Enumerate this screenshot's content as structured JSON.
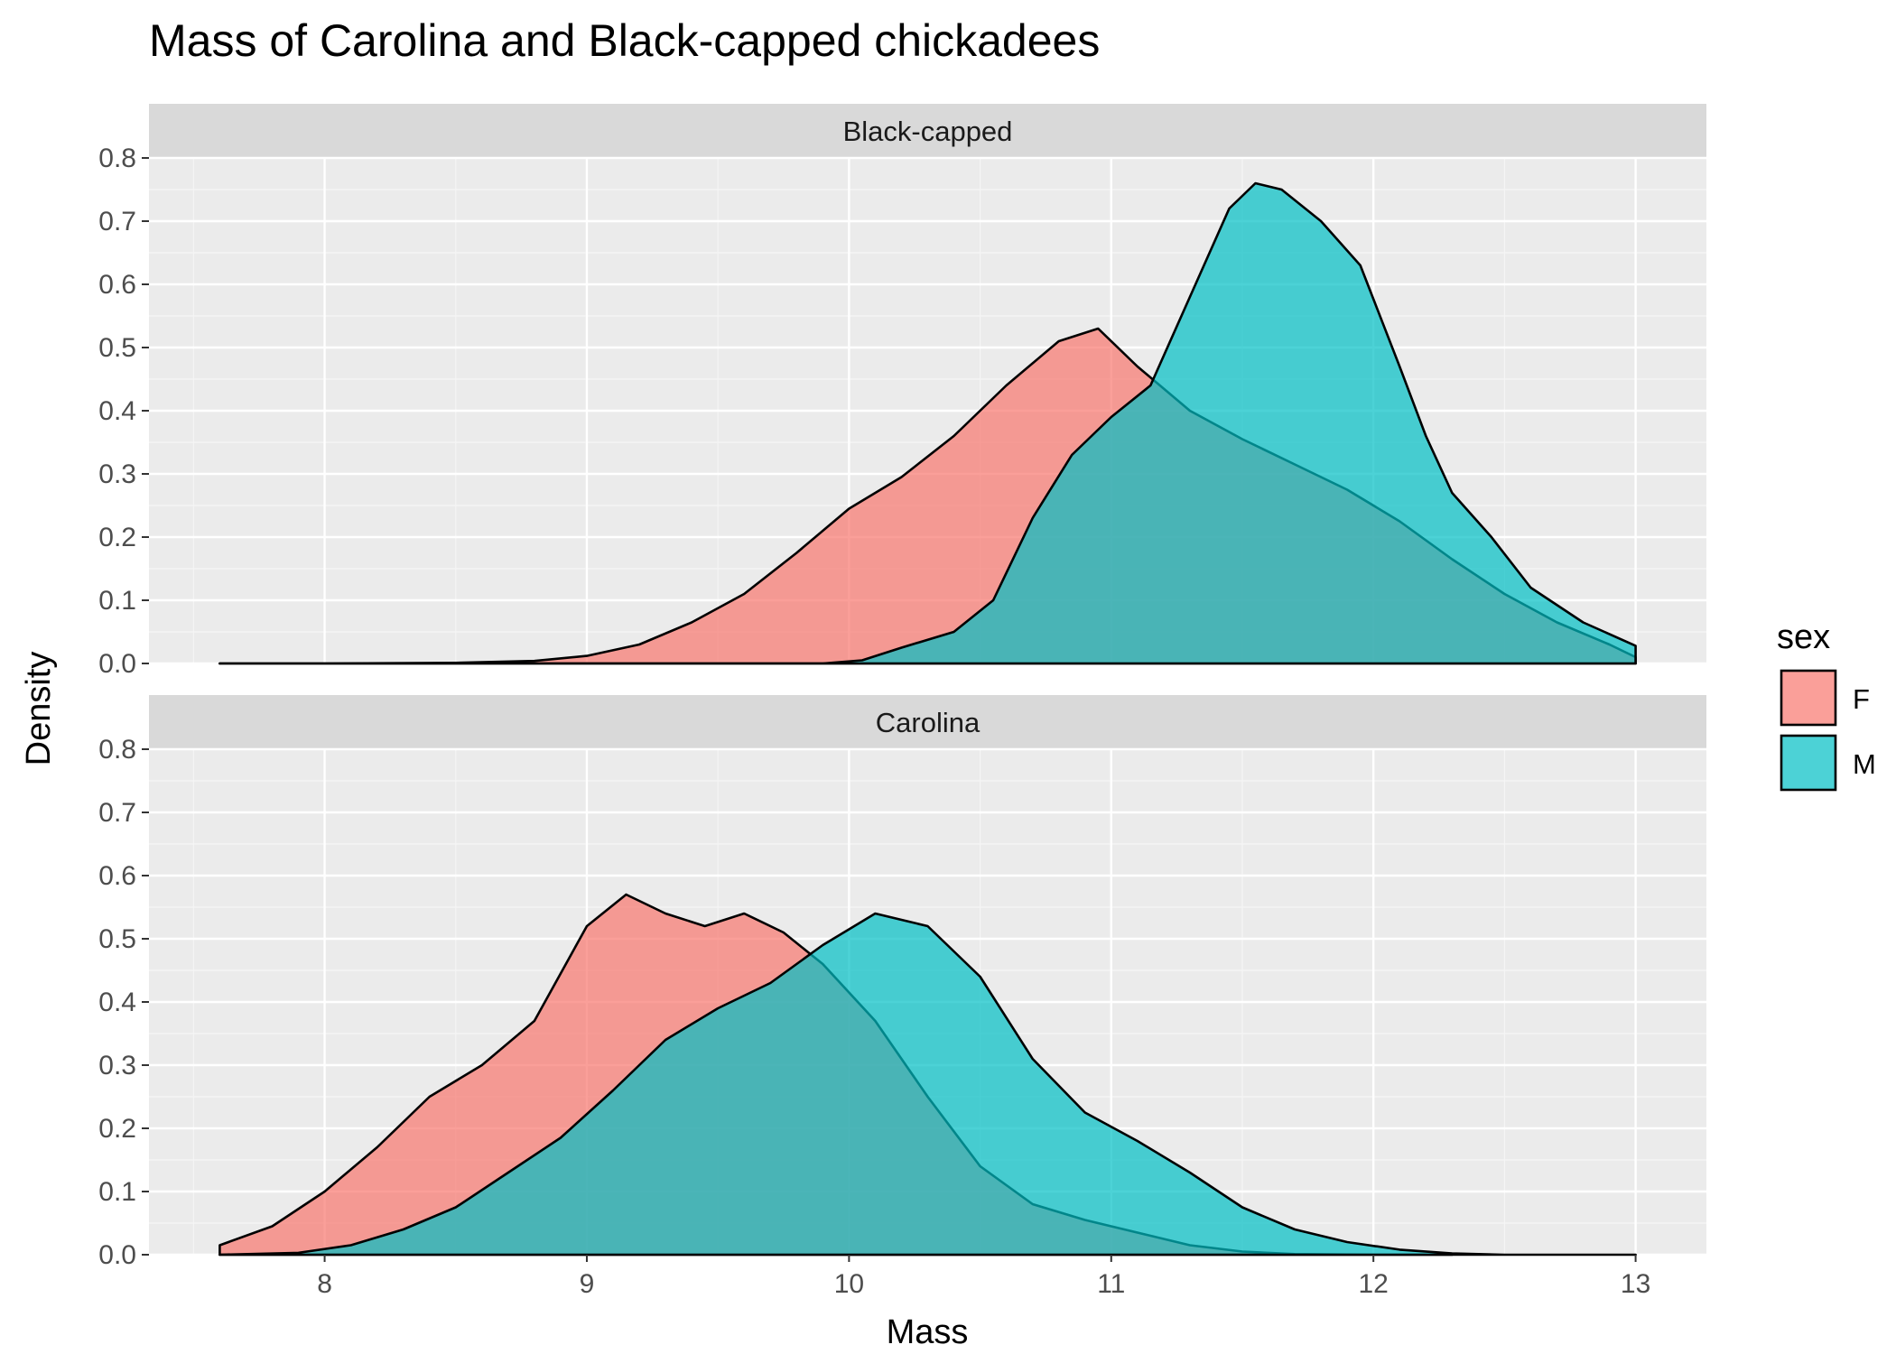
{
  "chart_data": {
    "type": "area",
    "title": "Mass of Carolina and Black-capped chickadees",
    "xlabel": "Mass",
    "ylabel": "Density",
    "xlim": [
      7.33,
      13.27
    ],
    "ylim": [
      0,
      0.8
    ],
    "x_ticks": [
      8,
      9,
      10,
      11,
      12,
      13
    ],
    "y_ticks": [
      0.0,
      0.1,
      0.2,
      0.3,
      0.4,
      0.5,
      0.6,
      0.7,
      0.8
    ],
    "x_tick_labels": [
      "8",
      "9",
      "10",
      "11",
      "12",
      "13"
    ],
    "y_tick_labels": [
      "0.0",
      "0.1",
      "0.2",
      "0.3",
      "0.4",
      "0.5",
      "0.6",
      "0.7",
      "0.8"
    ],
    "grid": true,
    "legend": {
      "title": "sex",
      "position": "right",
      "entries": [
        {
          "label": "F",
          "color": "#F8766D"
        },
        {
          "label": "M",
          "color": "#00BFC4"
        }
      ]
    },
    "facets": [
      {
        "label": "Black-capped",
        "series": [
          {
            "name": "F",
            "color": "#F8766D",
            "x": [
              7.6,
              8.0,
              8.5,
              8.8,
              9.0,
              9.2,
              9.4,
              9.6,
              9.8,
              10.0,
              10.2,
              10.4,
              10.6,
              10.8,
              10.95,
              11.1,
              11.3,
              11.5,
              11.7,
              11.9,
              12.1,
              12.3,
              12.5,
              12.7,
              12.9,
              13.0
            ],
            "y": [
              0.0,
              0.0,
              0.001,
              0.004,
              0.012,
              0.03,
              0.065,
              0.11,
              0.175,
              0.245,
              0.295,
              0.36,
              0.44,
              0.51,
              0.53,
              0.47,
              0.4,
              0.355,
              0.315,
              0.275,
              0.225,
              0.165,
              0.11,
              0.065,
              0.03,
              0.01
            ]
          },
          {
            "name": "M",
            "color": "#00BFC4",
            "x": [
              7.6,
              9.5,
              9.9,
              10.05,
              10.2,
              10.4,
              10.55,
              10.7,
              10.85,
              11.0,
              11.15,
              11.3,
              11.45,
              11.55,
              11.65,
              11.8,
              11.95,
              12.1,
              12.2,
              12.3,
              12.45,
              12.6,
              12.8,
              13.0
            ],
            "y": [
              0.0,
              0.0,
              0.0,
              0.005,
              0.025,
              0.05,
              0.1,
              0.23,
              0.33,
              0.39,
              0.44,
              0.58,
              0.72,
              0.76,
              0.75,
              0.7,
              0.63,
              0.47,
              0.36,
              0.27,
              0.2,
              0.12,
              0.065,
              0.028
            ]
          }
        ]
      },
      {
        "label": "Carolina",
        "series": [
          {
            "name": "F",
            "color": "#F8766D",
            "x": [
              7.6,
              7.8,
              8.0,
              8.2,
              8.4,
              8.6,
              8.8,
              9.0,
              9.15,
              9.3,
              9.45,
              9.6,
              9.75,
              9.9,
              10.1,
              10.3,
              10.5,
              10.7,
              10.9,
              11.1,
              11.3,
              11.5,
              11.7,
              12.0,
              12.3
            ],
            "y": [
              0.015,
              0.045,
              0.1,
              0.17,
              0.25,
              0.3,
              0.37,
              0.52,
              0.57,
              0.54,
              0.52,
              0.54,
              0.51,
              0.46,
              0.37,
              0.25,
              0.14,
              0.08,
              0.055,
              0.035,
              0.015,
              0.005,
              0.001,
              0.0,
              0.0
            ]
          },
          {
            "name": "M",
            "color": "#00BFC4",
            "x": [
              7.6,
              7.9,
              8.1,
              8.3,
              8.5,
              8.7,
              8.9,
              9.1,
              9.3,
              9.5,
              9.7,
              9.9,
              10.1,
              10.3,
              10.5,
              10.7,
              10.9,
              11.1,
              11.3,
              11.5,
              11.7,
              11.9,
              12.1,
              12.3,
              12.5,
              12.7,
              13.0
            ],
            "y": [
              0.0,
              0.003,
              0.015,
              0.04,
              0.075,
              0.13,
              0.185,
              0.26,
              0.34,
              0.39,
              0.43,
              0.49,
              0.54,
              0.52,
              0.44,
              0.31,
              0.225,
              0.18,
              0.13,
              0.075,
              0.04,
              0.02,
              0.008,
              0.002,
              0.0,
              0.0,
              0.0
            ]
          }
        ]
      }
    ]
  }
}
